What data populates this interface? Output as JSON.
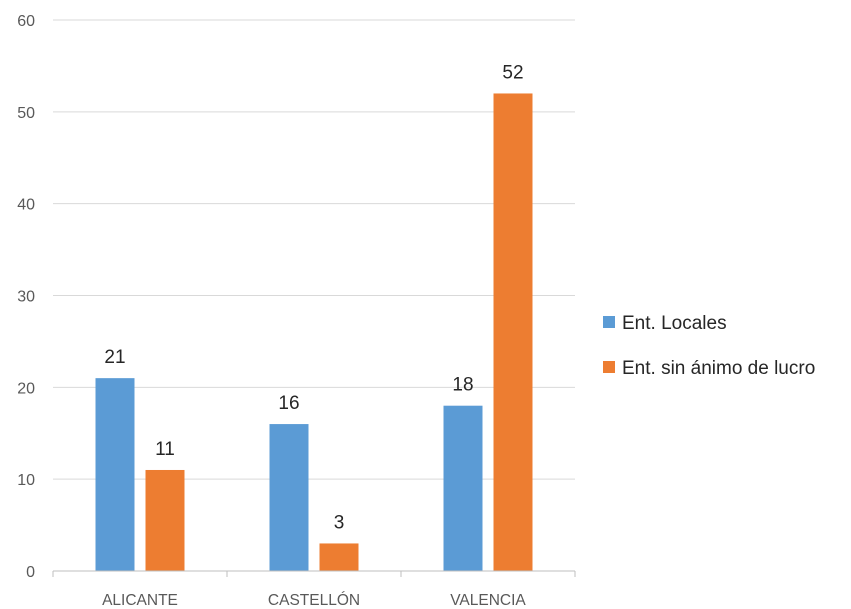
{
  "chart_data": {
    "type": "bar",
    "title": "",
    "xlabel": "",
    "ylabel": "",
    "categories": [
      "ALICANTE",
      "CASTELLÓN",
      "VALENCIA"
    ],
    "series": [
      {
        "name": "Ent. Locales",
        "color": "#5B9BD5",
        "values": [
          21,
          16,
          18
        ]
      },
      {
        "name": "Ent. sin ánimo de lucro",
        "color": "#ED7D31",
        "values": [
          11,
          3,
          52
        ]
      }
    ],
    "ylim": [
      0,
      60
    ],
    "yticks": [
      0,
      10,
      20,
      30,
      40,
      50,
      60
    ],
    "grid": true,
    "data_labels": true,
    "legend_position": "right"
  }
}
